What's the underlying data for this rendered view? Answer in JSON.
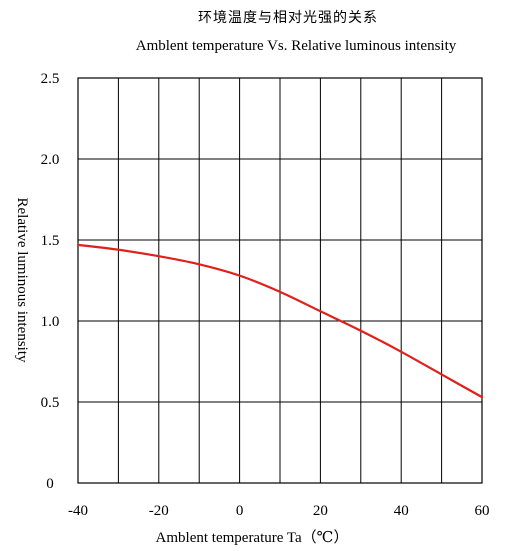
{
  "chart_data": {
    "type": "line",
    "title": "环境温度与相对光强的关系",
    "subtitle": "Amblent temperature  Vs.  Relative luminous intensity",
    "xlabel": "Amblent temperature Ta（℃）",
    "ylabel": "Relative luminous intensity",
    "xlim": [
      -40,
      60
    ],
    "ylim": [
      0,
      2.5
    ],
    "xticks": [
      -40,
      -20,
      0,
      20,
      40,
      60
    ],
    "xtick_labels": [
      "-40",
      "-20",
      "0",
      "20",
      "40",
      "60"
    ],
    "yticks": [
      0,
      0.5,
      1.0,
      1.5,
      2.0,
      2.5
    ],
    "ytick_labels": [
      "0",
      "0.5",
      "1.0",
      "1.5",
      "2.0",
      "2.5"
    ],
    "grid": true,
    "x_grid_step": 10,
    "series": [
      {
        "color": "#e0201b",
        "x": [
          -40,
          -30,
          -20,
          -10,
          0,
          10,
          20,
          30,
          40,
          50,
          60
        ],
        "y": [
          1.47,
          1.44,
          1.4,
          1.35,
          1.28,
          1.18,
          1.06,
          0.94,
          0.81,
          0.67,
          0.53
        ]
      }
    ]
  }
}
